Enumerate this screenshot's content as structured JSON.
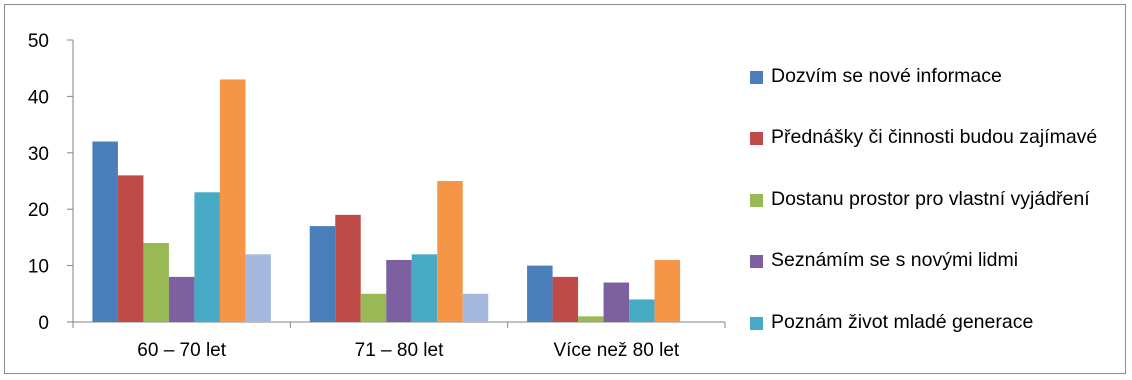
{
  "chart_data": {
    "type": "bar",
    "categories": [
      "60 – 70 let",
      "71 – 80 let",
      "Více než 80 let"
    ],
    "ylim": [
      0,
      50
    ],
    "yticks": [
      0,
      10,
      20,
      30,
      40,
      50
    ],
    "grid": false,
    "legend_position": "right",
    "series": [
      {
        "name": "Dozvím se nové informace",
        "color": "#4a7ebb",
        "values": [
          32,
          17,
          10
        ]
      },
      {
        "name": "Přednášky či činnosti budou zajímavé",
        "color": "#be4b48",
        "values": [
          26,
          19,
          8
        ]
      },
      {
        "name": "Dostanu prostor pro vlastní vyjádření",
        "color": "#98b954",
        "values": [
          14,
          5,
          1
        ]
      },
      {
        "name": "Seznámím se s novými lidmi",
        "color": "#7d60a0",
        "values": [
          8,
          11,
          7
        ]
      },
      {
        "name": "Poznám život mladé generace",
        "color": "#46aac5",
        "values": [
          23,
          12,
          4
        ]
      },
      {
        "color": "#f69545",
        "values": [
          43,
          25,
          11
        ]
      },
      {
        "color": "#a5b8de",
        "values": [
          12,
          5,
          0
        ]
      }
    ]
  }
}
